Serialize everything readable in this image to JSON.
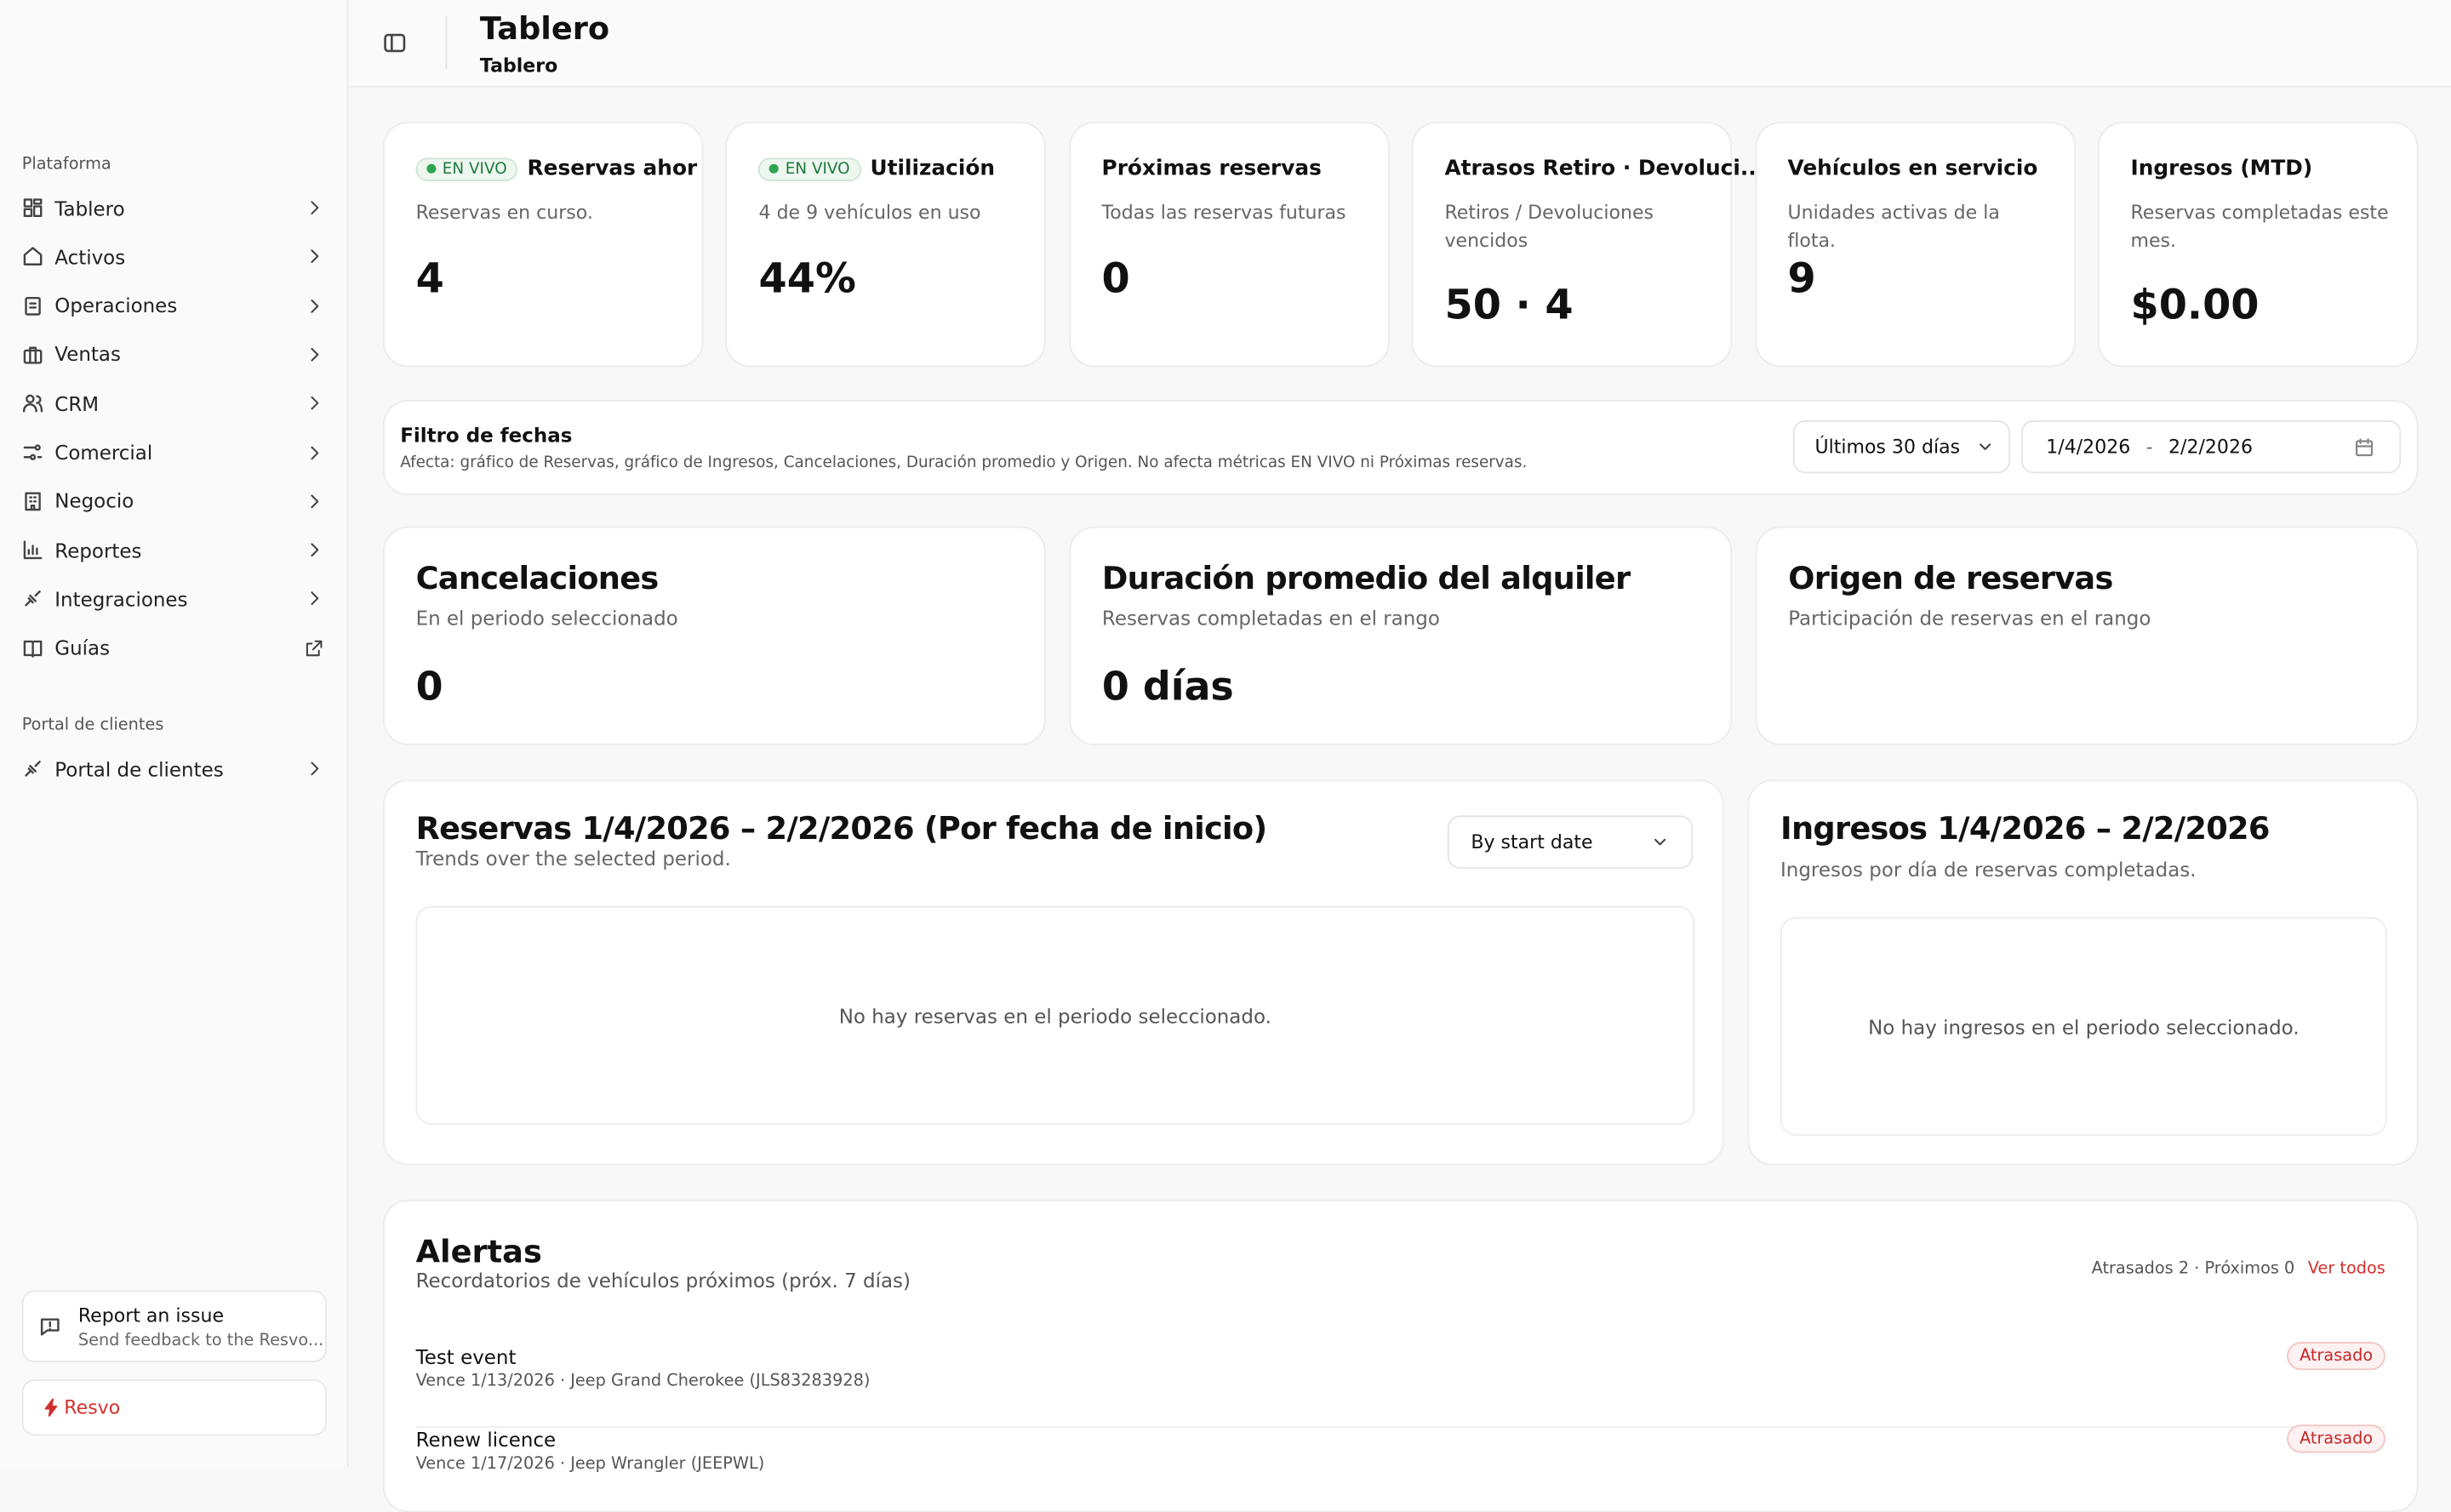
{
  "sidebar": {
    "section_1": "Plataforma",
    "nav": [
      "Tablero",
      "Activos",
      "Operaciones",
      "Ventas",
      "CRM",
      "Comercial",
      "Negocio",
      "Reportes",
      "Integraciones",
      "Guías"
    ],
    "section_2": "Portal de clientes",
    "nav_2": [
      "Portal de clientes"
    ],
    "report": {
      "title": "Report an issue",
      "subtitle": "Send feedback to the Resvo..."
    },
    "brand": "Resvo"
  },
  "header": {
    "title": "Tablero",
    "breadcrumb": "Tablero"
  },
  "kpis": [
    {
      "badge": "EN VIVO",
      "title": "Reservas ahor",
      "subtitle": "Reservas en curso.",
      "value": "4"
    },
    {
      "badge": "EN VIVO",
      "title": "Utilización",
      "subtitle": "4 de 9 vehículos en uso",
      "value": "44%"
    },
    {
      "title": "Próximas reservas",
      "subtitle": "Todas las reservas futuras",
      "value": "0"
    },
    {
      "title": "Atrasos Retiro · Devoluci...",
      "subtitle": "Retiros / Devoluciones vencidos",
      "value": "50 · 4"
    },
    {
      "title": "Vehículos en servicio",
      "subtitle": "Unidades activas de la flota.",
      "value": "9"
    },
    {
      "title": "Ingresos (MTD)",
      "subtitle": "Reservas completadas este mes.",
      "value": "$0.00"
    }
  ],
  "filter": {
    "title": "Filtro de fechas",
    "subtitle": "Afecta: gráfico de Reservas, gráfico de Ingresos, Cancelaciones, Duración promedio y Origen. No afecta métricas EN VIVO ni Próximas reservas.",
    "range": "Últimos 30 días",
    "from": "1/4/2026",
    "separator": "-",
    "to": "2/2/2026"
  },
  "metrics": [
    {
      "title": "Cancelaciones",
      "subtitle": "En el periodo seleccionado",
      "value": "0"
    },
    {
      "title": "Duración promedio del alquiler",
      "subtitle": "Reservas completadas en el rango",
      "value": "0 días"
    },
    {
      "title": "Origen de reservas",
      "subtitle": "Participación de reservas en el rango"
    }
  ],
  "charts": [
    {
      "title": "Reservas 1/4/2026 – 2/2/2026 (Por fecha de inicio)",
      "subtitle": "Trends over the selected period.",
      "select": "By start date",
      "empty": "No hay reservas en el periodo seleccionado."
    },
    {
      "title": "Ingresos 1/4/2026 – 2/2/2026",
      "subtitle": "Ingresos por día de reservas completadas.",
      "empty": "No hay ingresos en el periodo seleccionado."
    }
  ],
  "alerts": {
    "title": "Alertas",
    "subtitle": "Recordatorios de vehículos próximos (próx. 7 días)",
    "summary": "Atrasados 2 · Próximos 0",
    "link": "Ver todos",
    "items": [
      {
        "name": "Test event",
        "detail": "Vence 1/13/2026 · Jeep Grand Cherokee (JLS83283928)",
        "status": "Atrasado"
      },
      {
        "name": "Renew licence",
        "detail": "Vence 1/17/2026 · Jeep Wrangler (JEEPWL)",
        "status": "Atrasado"
      }
    ]
  }
}
